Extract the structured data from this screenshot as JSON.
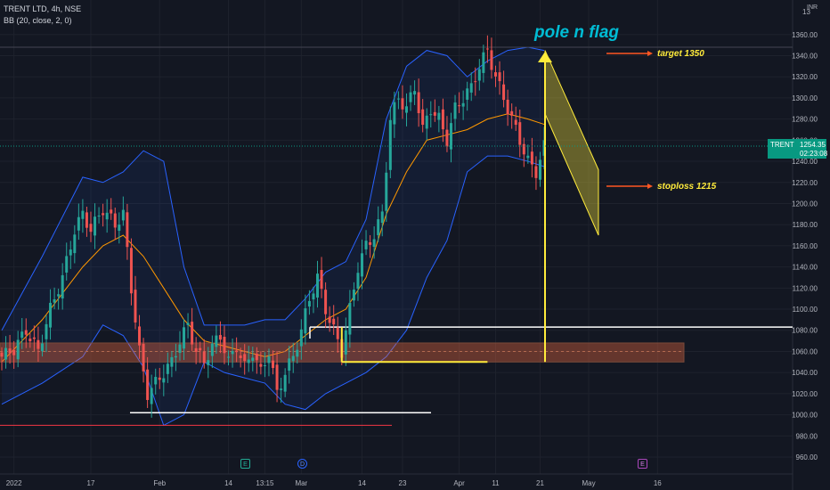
{
  "legend": {
    "symbol_line": "TRENT LTD, 4h, NSE",
    "indicator_line": "BB (20, close, 2, 0)"
  },
  "price_tag": {
    "symbol": "TRENT",
    "price": "1254.35",
    "countdown": "02:23:08"
  },
  "currency": "INR",
  "events": [
    "E",
    "D",
    "E"
  ],
  "annotations": {
    "title": "pole n flag",
    "target": "target 1350",
    "stoploss": "stoploss 1215"
  },
  "colors": {
    "background": "#131722",
    "up": "#26a69a",
    "down": "#ef5350",
    "bb_bands": "#2962ff",
    "bb_basis": "#ff9800",
    "pattern": "#ffeb3b",
    "arrow": "#ff5722",
    "title": "#00bcd4"
  },
  "chart_data": {
    "type": "candlestick",
    "title": "TRENT LTD, 4h, NSE",
    "indicator": "Bollinger Bands (20, close, 2, 0)",
    "y_axis": {
      "range": [
        950,
        1380
      ],
      "ticks": [
        960,
        980,
        1000,
        1020,
        1040,
        1060,
        1080,
        1100,
        1120,
        1140,
        1160,
        1180,
        1200,
        1220,
        1240,
        1260,
        1280,
        1300,
        1320,
        1340,
        1360
      ],
      "position": "right"
    },
    "x_axis": {
      "tick_labels": [
        "2022",
        "17",
        "Feb",
        "14",
        "13:15",
        "Mar",
        "14",
        "23",
        "Apr",
        "11",
        "21",
        "May",
        "16"
      ],
      "bar_range": [
        0,
        150
      ],
      "tick_bars": [
        3,
        22,
        39,
        56,
        65,
        74,
        89,
        99,
        113,
        122,
        133,
        145,
        162
      ]
    },
    "close_path": [
      [
        0,
        1055
      ],
      [
        3,
        1062
      ],
      [
        6,
        1080
      ],
      [
        9,
        1060
      ],
      [
        12,
        1100
      ],
      [
        15,
        1130
      ],
      [
        18,
        1175
      ],
      [
        20,
        1190
      ],
      [
        22,
        1175
      ],
      [
        25,
        1195
      ],
      [
        28,
        1180
      ],
      [
        30,
        1190
      ],
      [
        32,
        1120
      ],
      [
        34,
        1060
      ],
      [
        36,
        1020
      ],
      [
        38,
        1030
      ],
      [
        40,
        1040
      ],
      [
        42,
        1050
      ],
      [
        44,
        1070
      ],
      [
        46,
        1085
      ],
      [
        48,
        1060
      ],
      [
        50,
        1050
      ],
      [
        52,
        1065
      ],
      [
        54,
        1075
      ],
      [
        56,
        1050
      ],
      [
        58,
        1065
      ],
      [
        60,
        1045
      ],
      [
        62,
        1060
      ],
      [
        64,
        1040
      ],
      [
        66,
        1060
      ],
      [
        68,
        1020
      ],
      [
        70,
        1040
      ],
      [
        72,
        1055
      ],
      [
        74,
        1080
      ],
      [
        76,
        1110
      ],
      [
        78,
        1130
      ],
      [
        80,
        1100
      ],
      [
        82,
        1080
      ],
      [
        84,
        1060
      ],
      [
        86,
        1100
      ],
      [
        88,
        1140
      ],
      [
        90,
        1160
      ],
      [
        92,
        1170
      ],
      [
        94,
        1190
      ],
      [
        96,
        1280
      ],
      [
        98,
        1300
      ],
      [
        100,
        1290
      ],
      [
        102,
        1310
      ],
      [
        104,
        1270
      ],
      [
        106,
        1290
      ],
      [
        108,
        1280
      ],
      [
        110,
        1260
      ],
      [
        112,
        1290
      ],
      [
        114,
        1300
      ],
      [
        116,
        1310
      ],
      [
        118,
        1330
      ],
      [
        120,
        1345
      ],
      [
        122,
        1320
      ],
      [
        124,
        1300
      ],
      [
        126,
        1280
      ],
      [
        128,
        1260
      ],
      [
        130,
        1240
      ],
      [
        132,
        1230
      ],
      [
        134,
        1254
      ]
    ],
    "last_price": 1254.35,
    "price_line": 1254.35,
    "bollinger": {
      "upper": [
        [
          0,
          1080
        ],
        [
          10,
          1150
        ],
        [
          20,
          1225
        ],
        [
          25,
          1220
        ],
        [
          30,
          1230
        ],
        [
          35,
          1250
        ],
        [
          40,
          1240
        ],
        [
          45,
          1140
        ],
        [
          50,
          1085
        ],
        [
          55,
          1085
        ],
        [
          60,
          1085
        ],
        [
          65,
          1090
        ],
        [
          70,
          1090
        ],
        [
          75,
          1110
        ],
        [
          80,
          1135
        ],
        [
          85,
          1145
        ],
        [
          90,
          1185
        ],
        [
          95,
          1280
        ],
        [
          100,
          1330
        ],
        [
          105,
          1345
        ],
        [
          110,
          1340
        ],
        [
          115,
          1320
        ],
        [
          120,
          1335
        ],
        [
          125,
          1345
        ],
        [
          130,
          1348
        ],
        [
          134,
          1345
        ]
      ],
      "basis": [
        [
          0,
          1050
        ],
        [
          10,
          1090
        ],
        [
          20,
          1140
        ],
        [
          25,
          1160
        ],
        [
          30,
          1170
        ],
        [
          35,
          1150
        ],
        [
          40,
          1120
        ],
        [
          45,
          1090
        ],
        [
          50,
          1070
        ],
        [
          55,
          1065
        ],
        [
          60,
          1060
        ],
        [
          65,
          1055
        ],
        [
          70,
          1060
        ],
        [
          75,
          1075
        ],
        [
          80,
          1090
        ],
        [
          85,
          1100
        ],
        [
          90,
          1130
        ],
        [
          95,
          1190
        ],
        [
          100,
          1230
        ],
        [
          105,
          1260
        ],
        [
          110,
          1265
        ],
        [
          115,
          1270
        ],
        [
          120,
          1280
        ],
        [
          125,
          1285
        ],
        [
          130,
          1280
        ],
        [
          134,
          1275
        ]
      ],
      "lower": [
        [
          0,
          1010
        ],
        [
          10,
          1030
        ],
        [
          20,
          1055
        ],
        [
          25,
          1085
        ],
        [
          30,
          1075
        ],
        [
          35,
          1045
        ],
        [
          40,
          990
        ],
        [
          45,
          1000
        ],
        [
          50,
          1050
        ],
        [
          55,
          1040
        ],
        [
          60,
          1035
        ],
        [
          65,
          1030
        ],
        [
          70,
          1010
        ],
        [
          75,
          1005
        ],
        [
          80,
          1020
        ],
        [
          85,
          1030
        ],
        [
          90,
          1040
        ],
        [
          95,
          1055
        ],
        [
          100,
          1080
        ],
        [
          105,
          1130
        ],
        [
          110,
          1165
        ],
        [
          115,
          1230
        ],
        [
          120,
          1245
        ],
        [
          125,
          1245
        ],
        [
          130,
          1240
        ],
        [
          134,
          1235
        ]
      ]
    },
    "zones": {
      "support_band": [
        1050,
        1068
      ],
      "support_mid": 1060,
      "flag_base": 1050,
      "pole_top": 1345,
      "flag_channel": {
        "upper": [
          [
            120,
            1345
          ],
          [
            134,
            1232
          ]
        ],
        "lower": [
          [
            120,
            1285
          ],
          [
            134,
            1170
          ]
        ]
      }
    },
    "horizontal_lines": {
      "white_resistance": 1083,
      "white_low": 1002,
      "red_low": 990
    },
    "grid": true
  }
}
